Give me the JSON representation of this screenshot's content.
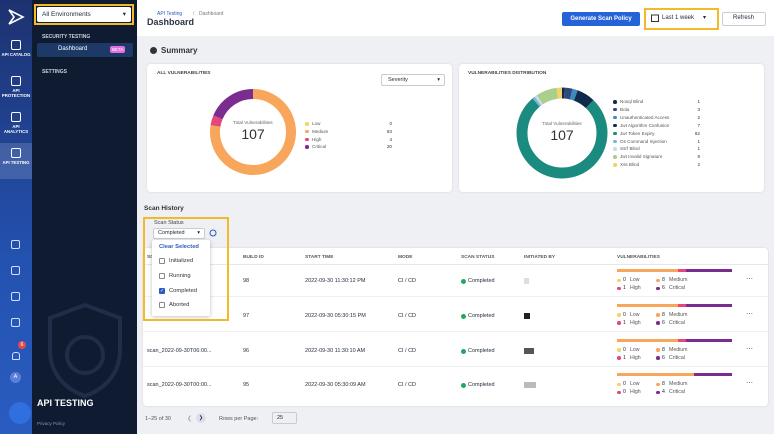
{
  "nav": {
    "rail": [
      "API CATALOG",
      "API PROTECTION",
      "API ANALYTICS",
      "API TESTING"
    ],
    "notification_count": 6,
    "avatar": "A"
  },
  "sidebar": {
    "environment": "All Environments",
    "section": "SECURITY TESTING",
    "item": "Dashboard",
    "badge": "BETA",
    "settings": "SETTINGS",
    "product": "API TESTING",
    "privacy": "Privacy Policy"
  },
  "header": {
    "breadcrumb": [
      "API Testing",
      "Dashboard"
    ],
    "title": "Dashboard",
    "generate": "Generate Scan Policy",
    "range": "Last 1 week",
    "refresh": "Refresh"
  },
  "summary": {
    "title": "Summary",
    "all": {
      "title": "ALL VULNERABILITIES",
      "filter": "Severity",
      "center_label": "Total Vulnerabilities",
      "total": 107,
      "items": [
        {
          "name": "Low",
          "value": 0,
          "color": "#f6d365"
        },
        {
          "name": "Medium",
          "value": 83,
          "color": "#f8a65b"
        },
        {
          "name": "High",
          "value": 4,
          "color": "#e4477a"
        },
        {
          "name": "Critical",
          "value": 20,
          "color": "#7b2c8f"
        }
      ]
    },
    "distribution": {
      "title": "VULNERABILITIES DISTRIBUTION",
      "center_label": "Total Vulnerabilities",
      "total": 107,
      "items": [
        {
          "name": "Nosql Blind",
          "value": 1,
          "color": "#13294b"
        },
        {
          "name": "Bola",
          "value": 3,
          "color": "#2e4a7d"
        },
        {
          "name": "Unauthenticated Access",
          "value": 2,
          "color": "#3d8bbd"
        },
        {
          "name": "Jwt Algorithm Confusion",
          "value": 7,
          "color": "#0f2a4a"
        },
        {
          "name": "Jwt Token Expiry",
          "value": 82,
          "color": "#1b8a7f"
        },
        {
          "name": "Os Command Injection",
          "value": 1,
          "color": "#7fb3d5"
        },
        {
          "name": "Ssrf Blind",
          "value": 1,
          "color": "#c9dbe9"
        },
        {
          "name": "Jwt Invalid Signature",
          "value": 8,
          "color": "#a9cf8a"
        },
        {
          "name": "Xss Blind",
          "value": 2,
          "color": "#f2d46b"
        }
      ]
    }
  },
  "history": {
    "title": "Scan History",
    "filter_label": "Scan Status",
    "filter_value": "Completed",
    "menu": {
      "clear": "Clear Selected",
      "options": [
        {
          "label": "Initialized",
          "checked": false
        },
        {
          "label": "Running",
          "checked": false
        },
        {
          "label": "Completed",
          "checked": true
        },
        {
          "label": "Aborted",
          "checked": false
        }
      ]
    },
    "columns": [
      "SCAN ID",
      "BUILD ID",
      "START TIME",
      "MODE",
      "SCAN STATUS",
      "INITIATED BY",
      "VULNERABILITIES"
    ],
    "severity_labels": [
      "Low",
      "Medium",
      "High",
      "Critical"
    ],
    "severity_colors": [
      "#f6d365",
      "#f8a65b",
      "#e4477a",
      "#7b2c8f"
    ],
    "rows": [
      {
        "scan_id": null,
        "build_id": 98,
        "start": "2022-09-30 11:30:12 PM",
        "mode": "CI / CD",
        "status": "Completed",
        "vulns": [
          0,
          8,
          1,
          6
        ]
      },
      {
        "scan_id": null,
        "build_id": 97,
        "start": "2022-09-30 05:30:15 PM",
        "mode": "CI / CD",
        "status": "Completed",
        "vulns": [
          0,
          8,
          1,
          6
        ]
      },
      {
        "scan_id": "scan_2022-09-30T06:00...",
        "build_id": 96,
        "start": "2022-09-30 11:30:10 AM",
        "mode": "CI / CD",
        "status": "Completed",
        "vulns": [
          0,
          8,
          1,
          6
        ]
      },
      {
        "scan_id": "scan_2022-09-30T00:00...",
        "build_id": 95,
        "start": "2022-09-30 05:30:09 AM",
        "mode": "CI / CD",
        "status": "Completed",
        "vulns": [
          0,
          8,
          0,
          4
        ]
      }
    ],
    "pagination": {
      "range": "1–25 of 30",
      "rows_label": "Rows per Page:",
      "rows_value": 25
    }
  }
}
